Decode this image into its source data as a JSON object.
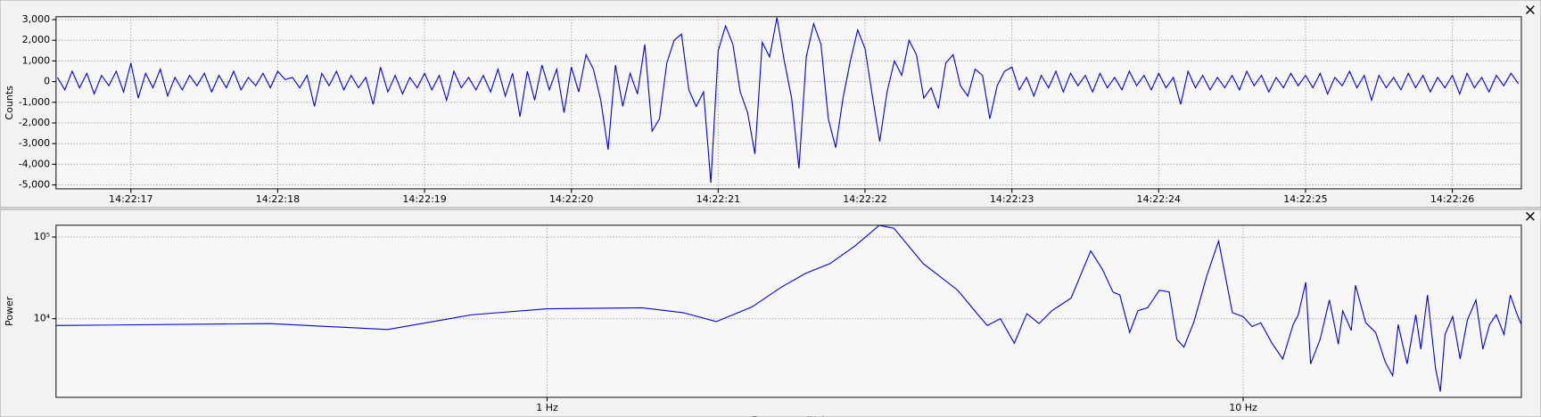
{
  "chart_data": [
    {
      "type": "line",
      "ylabel": "Counts",
      "color": "#0000dd",
      "x": [
        16.5,
        16.55,
        16.6,
        16.65,
        16.7,
        16.75,
        16.8,
        16.85,
        16.9,
        16.95,
        17,
        17.05,
        17.1,
        17.15,
        17.2,
        17.25,
        17.3,
        17.35,
        17.4,
        17.45,
        17.5,
        17.55,
        17.6,
        17.65,
        17.7,
        17.75,
        17.8,
        17.85,
        17.9,
        17.95,
        18,
        18.05,
        18.1,
        18.15,
        18.2,
        18.25,
        18.3,
        18.35,
        18.4,
        18.45,
        18.5,
        18.55,
        18.6,
        18.65,
        18.7,
        18.75,
        18.8,
        18.85,
        18.9,
        18.95,
        19,
        19.05,
        19.1,
        19.15,
        19.2,
        19.25,
        19.3,
        19.35,
        19.4,
        19.45,
        19.5,
        19.55,
        19.6,
        19.65,
        19.7,
        19.75,
        19.8,
        19.85,
        19.9,
        19.95,
        20,
        20.05,
        20.1,
        20.15,
        20.2,
        20.25,
        20.3,
        20.35,
        20.4,
        20.45,
        20.5,
        20.55,
        20.6,
        20.65,
        20.7,
        20.75,
        20.8,
        20.85,
        20.9,
        20.95,
        21,
        21.05,
        21.1,
        21.15,
        21.2,
        21.25,
        21.3,
        21.35,
        21.4,
        21.45,
        21.5,
        21.55,
        21.6,
        21.65,
        21.7,
        21.75,
        21.8,
        21.85,
        21.9,
        21.95,
        22,
        22.05,
        22.1,
        22.15,
        22.2,
        22.25,
        22.3,
        22.35,
        22.4,
        22.45,
        22.5,
        22.55,
        22.6,
        22.65,
        22.7,
        22.75,
        22.8,
        22.85,
        22.9,
        22.95,
        23,
        23.05,
        23.1,
        23.15,
        23.2,
        23.25,
        23.3,
        23.35,
        23.4,
        23.45,
        23.5,
        23.55,
        23.6,
        23.65,
        23.7,
        23.75,
        23.8,
        23.85,
        23.9,
        23.95,
        24,
        24.05,
        24.1,
        24.15,
        24.2,
        24.25,
        24.3,
        24.35,
        24.4,
        24.45,
        24.5,
        24.55,
        24.6,
        24.65,
        24.7,
        24.75,
        24.8,
        24.85,
        24.9,
        24.95,
        25,
        25.05,
        25.1,
        25.15,
        25.2,
        25.25,
        25.3,
        25.35,
        25.4,
        25.45,
        25.5,
        25.55,
        25.6,
        25.65,
        25.7,
        25.75,
        25.8,
        25.85,
        25.9,
        25.95,
        26,
        26.05,
        26.1,
        26.15,
        26.2,
        26.25,
        26.3,
        26.35,
        26.4,
        26.45
      ],
      "values": [
        200,
        -400,
        500,
        -300,
        400,
        -600,
        300,
        -200,
        500,
        -500,
        900,
        -800,
        400,
        -300,
        600,
        -700,
        200,
        -400,
        300,
        -200,
        400,
        -500,
        300,
        -300,
        500,
        -400,
        200,
        -200,
        400,
        -300,
        500,
        100,
        200,
        -300,
        300,
        -1200,
        400,
        -200,
        500,
        -400,
        300,
        -300,
        200,
        -1100,
        700,
        -500,
        300,
        -600,
        200,
        -300,
        400,
        -400,
        300,
        -900,
        500,
        -300,
        200,
        -400,
        300,
        -500,
        600,
        -700,
        400,
        -1700,
        500,
        -900,
        800,
        -400,
        600,
        -1500,
        700,
        -500,
        1300,
        600,
        -900,
        -3300,
        800,
        -1200,
        400,
        -600,
        1800,
        -2400,
        -1800,
        900,
        2000,
        2300,
        -400,
        -1200,
        -500,
        -4900,
        1500,
        2700,
        1800,
        -500,
        -1500,
        -3500,
        1900,
        1200,
        3100,
        1000,
        -800,
        -4200,
        1200,
        2800,
        1800,
        -1800,
        -3200,
        -800,
        1000,
        2500,
        1600,
        -700,
        -2900,
        -500,
        1000,
        300,
        2000,
        1300,
        -800,
        -300,
        -1300,
        900,
        1300,
        -200,
        -700,
        600,
        300,
        -1800,
        -200,
        500,
        700,
        -400,
        200,
        -700,
        300,
        -300,
        500,
        -500,
        400,
        -200,
        300,
        -500,
        400,
        -300,
        200,
        -400,
        500,
        -200,
        300,
        -400,
        400,
        -300,
        200,
        -1100,
        500,
        -300,
        300,
        -400,
        200,
        -300,
        300,
        -400,
        500,
        -200,
        300,
        -500,
        200,
        -300,
        400,
        -200,
        300,
        -300,
        400,
        -600,
        200,
        -200,
        500,
        -300,
        300,
        -900,
        300,
        -300,
        200,
        -400,
        400,
        -300,
        300,
        -500,
        200,
        -300,
        300,
        -600,
        400,
        -300,
        200,
        -500,
        300,
        -200,
        400,
        -100
      ],
      "xlim": [
        16.49,
        26.47
      ],
      "xticks": [
        {
          "value": 17,
          "label": "14:22:17"
        },
        {
          "value": 18,
          "label": "14:22:18"
        },
        {
          "value": 19,
          "label": "14:22:19"
        },
        {
          "value": 20,
          "label": "14:22:20"
        },
        {
          "value": 21,
          "label": "14:22:21"
        },
        {
          "value": 22,
          "label": "14:22:22"
        },
        {
          "value": 23,
          "label": "14:22:23"
        },
        {
          "value": 24,
          "label": "14:22:24"
        },
        {
          "value": 25,
          "label": "14:22:25"
        },
        {
          "value": 26,
          "label": "14:22:26"
        }
      ],
      "ylim": [
        -5190,
        3140
      ],
      "yticks": [
        {
          "value": -5000,
          "label": "-5,000"
        },
        {
          "value": -4000,
          "label": "-4,000"
        },
        {
          "value": -3000,
          "label": "-3,000"
        },
        {
          "value": -2000,
          "label": "-2,000"
        },
        {
          "value": -1000,
          "label": "-1,000"
        },
        0,
        {
          "value": 1000,
          "label": "1,000"
        },
        {
          "value": 2000,
          "label": "2,000"
        },
        {
          "value": 3000,
          "label": "3,000"
        }
      ],
      "grid": true
    },
    {
      "type": "line",
      "ylabel": "Power",
      "xlabel": "Frequency (Hz)",
      "color": "#0000dd",
      "xscale": "log",
      "yscale": "log",
      "x": [
        0.197,
        0.4,
        0.59,
        0.78,
        1.0,
        1.37,
        1.57,
        1.75,
        1.97,
        2.17,
        2.35,
        2.55,
        2.77,
        3.0,
        3.15,
        3.47,
        3.89,
        4.16,
        4.29,
        4.48,
        4.69,
        4.89,
        5.09,
        5.31,
        5.66,
        6.04,
        6.28,
        6.5,
        6.65,
        6.87,
        7.06,
        7.29,
        7.58,
        7.83,
        8.03,
        8.22,
        8.5,
        8.87,
        9.22,
        9.65,
        10,
        10.3,
        10.6,
        11.0,
        11.4,
        11.8,
        12.0,
        12.3,
        12.5,
        12.9,
        13.3,
        13.7,
        13.9,
        14.3,
        14.5,
        15.0,
        15.5,
        16.0,
        16.4,
        16.7,
        17.2,
        17.7,
        18.0,
        18.4,
        18.9,
        19.2,
        19.5,
        20.0,
        20.5,
        21.0,
        21.6,
        22.1,
        22.6,
        23.1,
        23.7,
        24.2,
        24.7,
        25.1
      ],
      "values": [
        8240,
        8700,
        7370,
        11170,
        13200,
        13600,
        11810,
        9200,
        13950,
        24300,
        35800,
        47300,
        77900,
        139000,
        128000,
        47300,
        22300,
        11170,
        8240,
        10000,
        5000,
        11500,
        8700,
        12500,
        17900,
        67700,
        40000,
        21200,
        19500,
        6780,
        12500,
        13600,
        22300,
        21200,
        5580,
        4480,
        9200,
        33800,
        89300,
        11810,
        10600,
        8000,
        8900,
        5000,
        3210,
        8470,
        11170,
        27900,
        2790,
        5580,
        16950,
        4860,
        12500,
        7170,
        25700,
        8900,
        6780,
        2950,
        2000,
        8470,
        2790,
        11170,
        4230,
        19500,
        2430,
        1280,
        6400,
        10600,
        3210,
        9700,
        16950,
        4230,
        8470,
        11170,
        6400,
        19500,
        11800,
        8470
      ],
      "xlim": [
        0.197,
        25.1
      ],
      "xticks": [
        {
          "value": 1,
          "label": "1 Hz"
        },
        {
          "value": 10,
          "label": "10 Hz"
        }
      ],
      "ylim": [
        1087,
        139600
      ],
      "yticks": [
        {
          "value": 10000,
          "label": "10⁴"
        },
        {
          "value": 100000,
          "label": "10⁵"
        }
      ],
      "grid": true
    }
  ]
}
